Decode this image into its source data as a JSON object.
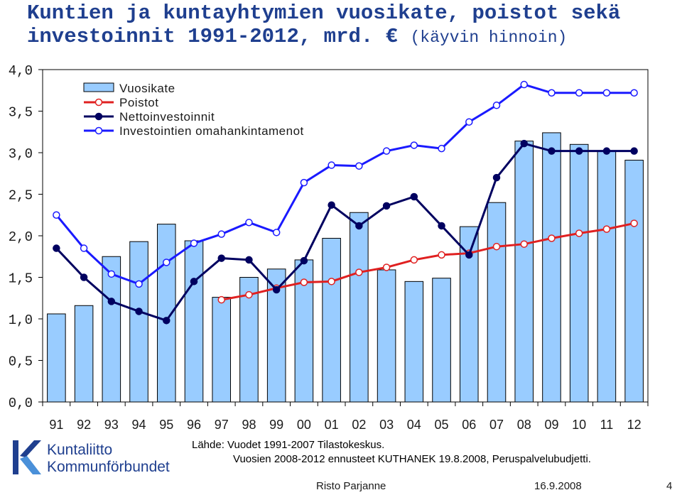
{
  "title": {
    "line1": "Kuntien ja kuntayhtymien vuosikate, poistot sekä",
    "line2": "investoinnit 1991-2012, mrd. €",
    "line2_sub": "(käyvin hinnoin)"
  },
  "chart_data": {
    "type": "bar",
    "categories": [
      "91",
      "92",
      "93",
      "94",
      "95",
      "96",
      "97",
      "98",
      "99",
      "00",
      "01",
      "02",
      "03",
      "04",
      "05",
      "06",
      "07",
      "08",
      "09",
      "10",
      "11",
      "12"
    ],
    "ylim": [
      0,
      4.0
    ],
    "yticks": [
      "0,0",
      "0,5",
      "1,0",
      "1,5",
      "2,0",
      "2,5",
      "3,0",
      "3,5",
      "4,0"
    ],
    "legend_position": "top-left",
    "series": [
      {
        "name": "Vuosikate",
        "kind": "bar",
        "color": "#99ccff",
        "values": [
          1.06,
          1.16,
          1.75,
          1.93,
          2.14,
          1.94,
          1.26,
          1.5,
          1.6,
          1.71,
          1.97,
          2.28,
          1.59,
          1.45,
          1.49,
          2.11,
          2.4,
          3.14,
          3.24,
          3.1,
          3.02,
          2.91
        ]
      },
      {
        "name": "Poistot",
        "kind": "line",
        "color": "#e02020",
        "marker": "open",
        "values": [
          null,
          null,
          null,
          null,
          null,
          null,
          1.23,
          1.29,
          1.37,
          1.44,
          1.45,
          1.56,
          1.62,
          1.71,
          1.77,
          1.79,
          1.87,
          1.9,
          1.97,
          2.03,
          2.08,
          2.15
        ]
      },
      {
        "name": "Nettoinvestoinnit",
        "kind": "line",
        "color": "#000060",
        "marker": "filled",
        "values": [
          1.85,
          1.5,
          1.21,
          1.09,
          0.98,
          1.45,
          1.73,
          1.71,
          1.35,
          1.7,
          2.37,
          2.12,
          2.36,
          2.47,
          2.12,
          1.77,
          2.7,
          3.11,
          3.02,
          3.02,
          3.02,
          3.02
        ]
      },
      {
        "name": "Investointien omahankintamenot",
        "kind": "line",
        "color": "#1a1aff",
        "marker": "open",
        "values": [
          2.25,
          1.85,
          1.54,
          1.42,
          1.68,
          1.91,
          2.02,
          2.16,
          2.04,
          2.64,
          2.85,
          2.84,
          3.02,
          3.09,
          3.05,
          3.37,
          3.57,
          3.82,
          3.72,
          3.72,
          3.72,
          3.72
        ]
      }
    ]
  },
  "source": {
    "line1": "Lähde: Vuodet 1991-2007 Tilastokeskus.",
    "line2": "Vuosien 2008-2012 ennusteet KUTHANEK 19.8.2008, Peruspalvelubudjetti."
  },
  "logo": {
    "name_fi": "Kuntaliitto",
    "name_sv": "Kommunförbundet"
  },
  "footer": {
    "author": "Risto Parjanne",
    "date": "16.9.2008",
    "page": "4"
  }
}
